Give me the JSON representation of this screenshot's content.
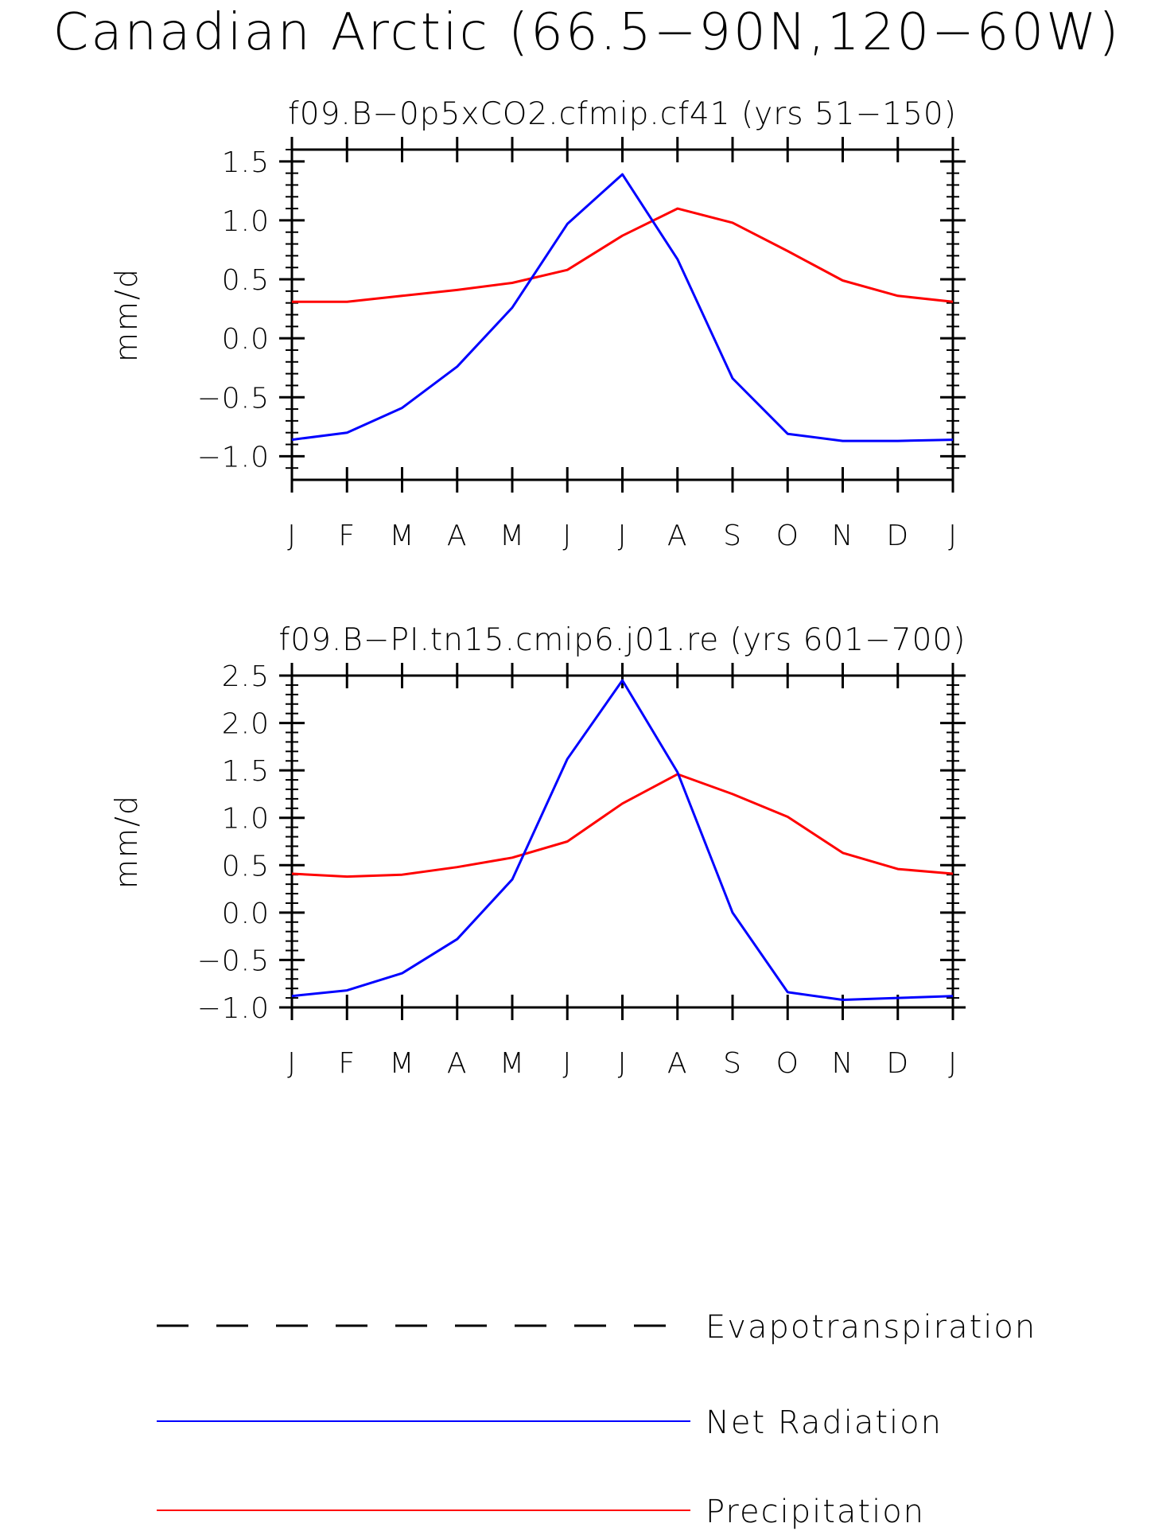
{
  "figure_title": "Canadian Arctic (66.5−90N,120−60W)",
  "chart_data": [
    {
      "type": "line",
      "title": "f09.B−0p5xCO2.cfmip.cf41 (yrs 51−150)",
      "xlabel": "",
      "ylabel": "mm/d",
      "categories": [
        "J",
        "F",
        "M",
        "A",
        "M",
        "J",
        "J",
        "A",
        "S",
        "O",
        "N",
        "D",
        "J"
      ],
      "ylim": [
        -1.2,
        1.6
      ],
      "yticks": [
        1.5,
        1.0,
        0.5,
        0.0,
        -0.5,
        -1.0
      ],
      "ytick_labels": [
        "1.5",
        "1.0",
        "0.5",
        "0.0",
        "−0.5",
        "−1.0"
      ],
      "yminor_step": 0.1,
      "series": [
        {
          "name": "Net Radiation",
          "color": "#0000ff",
          "values": [
            -0.86,
            -0.8,
            -0.59,
            -0.24,
            0.26,
            0.97,
            1.39,
            0.67,
            -0.34,
            -0.81,
            -0.87,
            -0.87,
            -0.86
          ]
        },
        {
          "name": "Precipitation",
          "color": "#ff0000",
          "values": [
            0.31,
            0.31,
            0.36,
            0.41,
            0.47,
            0.58,
            0.87,
            1.1,
            0.98,
            0.74,
            0.49,
            0.36,
            0.31
          ]
        }
      ]
    },
    {
      "type": "line",
      "title": "f09.B−PI.tn15.cmip6.j01.re (yrs 601−700)",
      "xlabel": "",
      "ylabel": "mm/d",
      "categories": [
        "J",
        "F",
        "M",
        "A",
        "M",
        "J",
        "J",
        "A",
        "S",
        "O",
        "N",
        "D",
        "J"
      ],
      "ylim": [
        -1.0,
        2.5
      ],
      "yticks": [
        2.5,
        2.0,
        1.5,
        1.0,
        0.5,
        0.0,
        -0.5,
        -1.0
      ],
      "ytick_labels": [
        "2.5",
        "2.0",
        "1.5",
        "1.0",
        "0.5",
        "0.0",
        "−0.5",
        "−1.0"
      ],
      "yminor_step": 0.1,
      "series": [
        {
          "name": "Net Radiation",
          "color": "#0000ff",
          "values": [
            -0.88,
            -0.82,
            -0.64,
            -0.28,
            0.35,
            1.62,
            2.45,
            1.48,
            0.0,
            -0.84,
            -0.92,
            -0.9,
            -0.88
          ]
        },
        {
          "name": "Precipitation",
          "color": "#ff0000",
          "values": [
            0.41,
            0.38,
            0.4,
            0.48,
            0.58,
            0.75,
            1.15,
            1.46,
            1.25,
            1.01,
            0.63,
            0.46,
            0.41
          ]
        }
      ]
    }
  ],
  "legend": [
    {
      "label": "Evapotranspiration",
      "color": "#000000",
      "style": "dashed"
    },
    {
      "label": "Net Radiation",
      "color": "#0000ff",
      "style": "solid"
    },
    {
      "label": "Precipitation",
      "color": "#ff0000",
      "style": "solid"
    }
  ]
}
